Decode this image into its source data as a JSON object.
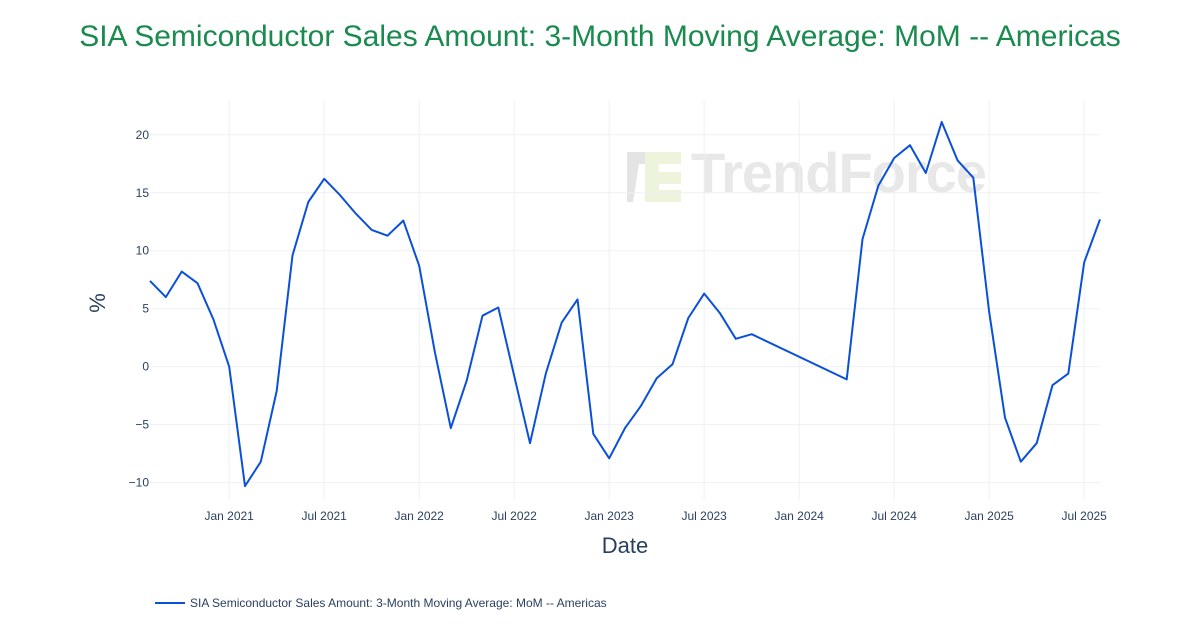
{
  "chart_data": {
    "type": "line",
    "title": "SIA Semiconductor Sales Amount: 3-Month Moving Average: MoM -- Americas",
    "xlabel": "Date",
    "ylabel": "%",
    "xlim": [
      "2020-08",
      "2025-08"
    ],
    "ylim": [
      -11.5,
      23
    ],
    "grid": true,
    "legend_position": "bottom-left",
    "x_ticks": [
      {
        "date": "2021-01",
        "label": "Jan 2021"
      },
      {
        "date": "2021-07",
        "label": "Jul 2021"
      },
      {
        "date": "2022-01",
        "label": "Jan 2022"
      },
      {
        "date": "2022-07",
        "label": "Jul 2022"
      },
      {
        "date": "2023-01",
        "label": "Jan 2023"
      },
      {
        "date": "2023-07",
        "label": "Jul 2023"
      },
      {
        "date": "2024-01",
        "label": "Jan 2024"
      },
      {
        "date": "2024-07",
        "label": "Jul 2024"
      },
      {
        "date": "2025-01",
        "label": "Jan 2025"
      },
      {
        "date": "2025-07",
        "label": "Jul 2025"
      }
    ],
    "y_ticks": [
      {
        "value": 20,
        "label": "20"
      },
      {
        "value": 15,
        "label": "15"
      },
      {
        "value": 10,
        "label": "10"
      },
      {
        "value": 5,
        "label": "5"
      },
      {
        "value": 0,
        "label": "0"
      },
      {
        "value": -5,
        "label": "−5"
      },
      {
        "value": -10,
        "label": "−10"
      }
    ],
    "series": [
      {
        "name": "SIA Semiconductor Sales Amount: 3-Month Moving Average: MoM -- Americas",
        "color": "#0b50d8",
        "x": [
          "2020-08",
          "2020-09",
          "2020-10",
          "2020-11",
          "2020-12",
          "2021-01",
          "2021-02",
          "2021-03",
          "2021-04",
          "2021-05",
          "2021-06",
          "2021-07",
          "2021-08",
          "2021-09",
          "2021-10",
          "2021-11",
          "2021-12",
          "2022-01",
          "2022-02",
          "2022-03",
          "2022-04",
          "2022-05",
          "2022-06",
          "2022-07",
          "2022-08",
          "2022-09",
          "2022-10",
          "2022-11",
          "2022-12",
          "2023-01",
          "2023-02",
          "2023-03",
          "2023-04",
          "2023-05",
          "2023-06",
          "2023-07",
          "2023-08",
          "2023-09",
          "2023-10",
          "2024-04",
          "2024-05",
          "2024-06",
          "2024-07",
          "2024-08",
          "2024-09",
          "2024-10",
          "2024-11",
          "2024-12",
          "2025-01",
          "2025-02",
          "2025-03",
          "2025-04",
          "2025-05",
          "2025-06",
          "2025-07",
          "2025-08"
        ],
        "y": [
          7.4,
          6.0,
          8.2,
          7.2,
          4.1,
          0.0,
          -10.3,
          -8.2,
          -2.1,
          9.6,
          14.2,
          16.2,
          14.8,
          13.2,
          11.8,
          11.3,
          12.6,
          8.7,
          1.2,
          -5.3,
          -1.2,
          4.4,
          5.1,
          -0.8,
          -6.6,
          -0.6,
          3.8,
          5.8,
          -5.8,
          -7.9,
          -5.3,
          -3.4,
          -1.0,
          0.2,
          4.2,
          6.3,
          4.6,
          2.4,
          2.8,
          -1.1,
          11.0,
          15.6,
          18.0,
          19.1,
          16.7,
          21.1,
          17.8,
          16.3,
          4.7,
          -4.4,
          -8.2,
          -6.6,
          -1.6,
          -0.6,
          9.0,
          12.7
        ]
      }
    ]
  },
  "watermark": "TrendForce"
}
